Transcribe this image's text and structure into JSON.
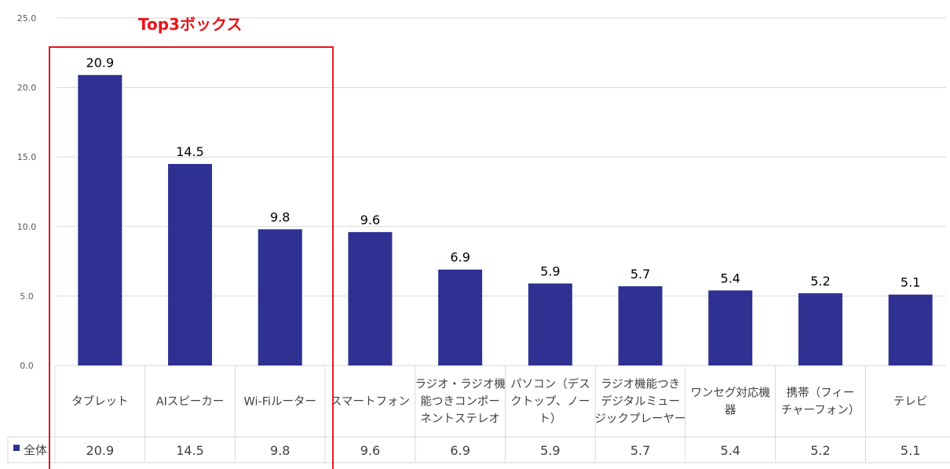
{
  "chart_data": {
    "type": "bar",
    "categories": [
      "タブレット",
      "AIスピーカー",
      "Wi-Fiルーター",
      "スマートフォン",
      "ラジオ・ラジオ機能つきコンポーネントステレオ",
      "パソコン（デスクトップ、ノート）",
      "ラジオ機能つきデジタルミュージックプレーヤー",
      "ワンセグ対応機器",
      "携帯（フィーチャーフォン）",
      "テレビ"
    ],
    "category_lines": [
      [
        "タブレット"
      ],
      [
        "AIスピーカー"
      ],
      [
        "Wi-Fiルーター"
      ],
      [
        "スマートフォン"
      ],
      [
        "ラジオ・ラジオ機",
        "能つきコンポー",
        "ネントステレオ"
      ],
      [
        "パソコン（デス",
        "クトップ、ノー",
        "ト）"
      ],
      [
        "ラジオ機能つき",
        "デジタルミュー",
        "ジックプレーヤー"
      ],
      [
        "ワンセグ対応機",
        "器"
      ],
      [
        "携帯（フィー",
        "チャーフォン）"
      ],
      [
        "テレビ"
      ]
    ],
    "series": [
      {
        "name": "全体",
        "values": [
          20.9,
          14.5,
          9.8,
          9.6,
          6.9,
          5.9,
          5.7,
          5.4,
          5.2,
          5.1
        ],
        "color": "#2e3192"
      }
    ],
    "y_ticks": [
      "0.0",
      "5.0",
      "10.0",
      "15.0",
      "20.0",
      "25.0"
    ],
    "ylim": [
      0,
      25
    ],
    "grid": true,
    "legend": "data-table",
    "annotation": {
      "label": "Top3ボックス",
      "covers_categories": 3,
      "color": "#e8141b"
    }
  }
}
